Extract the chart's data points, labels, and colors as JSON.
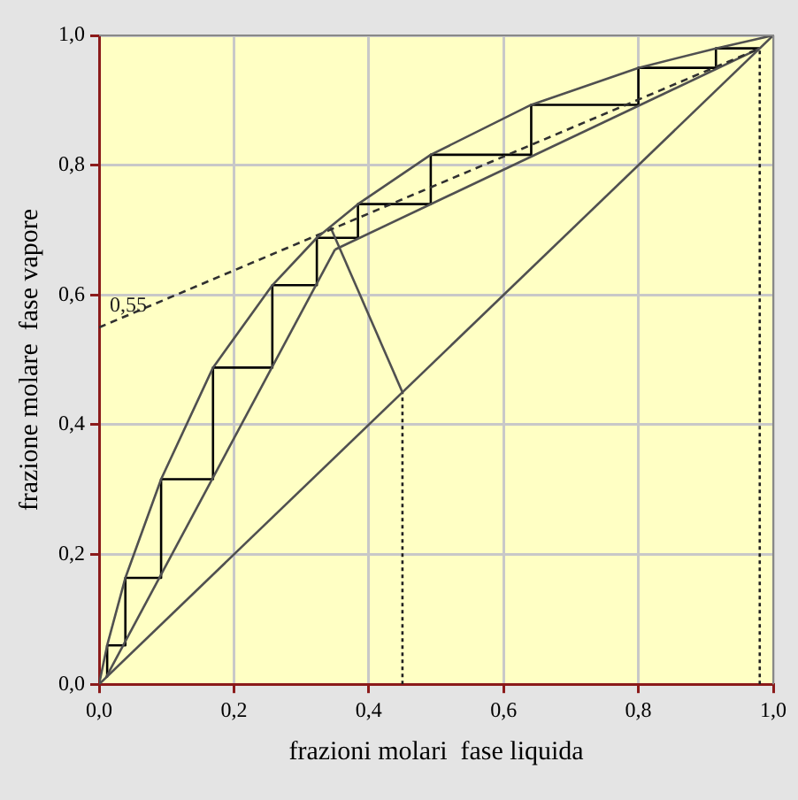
{
  "chart_data": {
    "type": "line",
    "xlabel": "frazioni molari  fase liquida",
    "ylabel": "frazione molare  fase vapore",
    "xlim": [
      0,
      1
    ],
    "ylim": [
      0,
      1
    ],
    "xticks": [
      {
        "value": 0,
        "label": "0,0"
      },
      {
        "value": 0.2,
        "label": "0,2"
      },
      {
        "value": 0.4,
        "label": "0,4"
      },
      {
        "value": 0.6,
        "label": "0,6"
      },
      {
        "value": 0.8,
        "label": "0,8"
      },
      {
        "value": 1,
        "label": "1,0"
      }
    ],
    "yticks": [
      {
        "value": 0,
        "label": "0,0"
      },
      {
        "value": 0.2,
        "label": "0,2"
      },
      {
        "value": 0.4,
        "label": "0,4"
      },
      {
        "value": 0.6,
        "label": "0,6"
      },
      {
        "value": 0.8,
        "label": "0,8"
      },
      {
        "value": 1,
        "label": "1,0"
      }
    ],
    "grid": true,
    "legend": false,
    "marker": "none",
    "series": [
      {
        "color": "#505050",
        "x": [
          0,
          0.012,
          0.039,
          0.092,
          0.169,
          0.257,
          0.323,
          0.384,
          0.492,
          0.641,
          0.8,
          0.915,
          1
        ],
        "values": [
          0,
          0.06,
          0.164,
          0.316,
          0.488,
          0.615,
          0.688,
          0.74,
          0.816,
          0.893,
          0.95,
          0.98,
          1
        ]
      },
      {
        "color": "#505050",
        "x": [
          0,
          1
        ],
        "values": [
          0,
          1
        ]
      },
      {
        "color": "#303030",
        "line_style": "dashed",
        "x": [
          0,
          0.98
        ],
        "values": [
          0.55,
          0.98
        ]
      },
      {
        "color": "#505050",
        "x": [
          0.35,
          0.98
        ],
        "values": [
          0.67,
          0.98
        ]
      },
      {
        "color": "#505050",
        "x": [
          0.01,
          0.35
        ],
        "values": [
          0.01,
          0.67
        ]
      },
      {
        "color": "#505050",
        "x": [
          0.45,
          0.343
        ],
        "values": [
          0.45,
          0.705
        ]
      },
      {
        "color": "#202020",
        "line_style": "dotted",
        "x": [
          0.45,
          0.45
        ],
        "values": [
          0,
          0.45
        ]
      },
      {
        "color": "#202020",
        "line_style": "dotted",
        "x": [
          0.98,
          0.98
        ],
        "values": [
          0,
          0.98
        ]
      },
      {
        "color": "#000000",
        "x": [
          0.98,
          0.915,
          0.915,
          0.8,
          0.8,
          0.641,
          0.641,
          0.492,
          0.492,
          0.384,
          0.384,
          0.323,
          0.323,
          0.257,
          0.257,
          0.169,
          0.169,
          0.092,
          0.092,
          0.039,
          0.039,
          0.012,
          0.012
        ],
        "values": [
          0.98,
          0.98,
          0.95,
          0.95,
          0.893,
          0.893,
          0.816,
          0.816,
          0.74,
          0.74,
          0.688,
          0.688,
          0.615,
          0.615,
          0.488,
          0.488,
          0.316,
          0.316,
          0.164,
          0.164,
          0.06,
          0.06,
          0.012
        ]
      }
    ],
    "annotations": [
      {
        "text": "0,55",
        "x": 0,
        "y": 0.55
      }
    ]
  }
}
